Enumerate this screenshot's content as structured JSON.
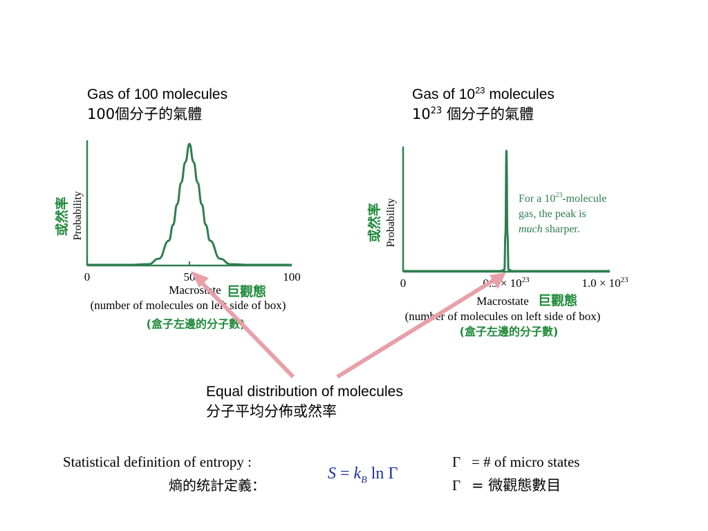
{
  "left_panel": {
    "title_en": "Gas of 100 molecules",
    "title_zh": "100個分子的氣體"
  },
  "right_panel": {
    "title_en_prefix": "Gas of 10",
    "title_en_exp": "23",
    "title_en_suffix": " molecules",
    "title_zh_prefix": "10",
    "title_zh_exp": "23",
    "title_zh_suffix": " 個分子的氣體",
    "annotation_line1_prefix": "For a 10",
    "annotation_line1_exp": "23",
    "annotation_line1_suffix": "-molecule",
    "annotation_line2": "gas, the peak is",
    "annotation_line3_italic": "much",
    "annotation_line3_suffix": " sharper."
  },
  "equal_distribution": {
    "en": "Equal distribution of molecules",
    "zh": "分子平均分佈或然率"
  },
  "entropy": {
    "label_en": "Statistical definition of entropy :",
    "label_zh": "熵的统計定義：",
    "formula_S": "S",
    "formula_eq": " = ",
    "formula_k": "k",
    "formula_B": "B",
    "formula_ln": " ln ",
    "formula_gamma": "Γ",
    "def1_symbol": "Γ",
    "def1_text": "= # of micro states",
    "def2_symbol": "Γ",
    "def2_text": "= 微觀態數目"
  },
  "colors": {
    "curve": "#2e7d4f",
    "arrow": "#e8a0a8",
    "annotation_text": "#2e7d4f",
    "chinese_label": "#1f8a3a",
    "formula": "#1a2fa0"
  },
  "chart_data": [
    {
      "type": "line",
      "title": "",
      "xlabel": "Macrostate",
      "xlabel_sub": "(number of molecules on left side of box)",
      "ylabel": "Probability",
      "ylabel_zh": "或然率",
      "xlabel_zh": "巨觀態",
      "xlabel_sub_zh": "(盒子左邊的分子數)",
      "xlim": [
        0,
        100
      ],
      "x_ticks": [
        "0",
        "50",
        "100"
      ],
      "series": [
        {
          "x": [
            0,
            20,
            30,
            35,
            40,
            42,
            44,
            46,
            48,
            50,
            52,
            54,
            56,
            58,
            60,
            65,
            70,
            80,
            100
          ],
          "y": [
            0,
            0,
            0.005,
            0.05,
            0.2,
            0.33,
            0.5,
            0.68,
            0.85,
            1.0,
            0.85,
            0.68,
            0.5,
            0.33,
            0.2,
            0.05,
            0.005,
            0,
            0
          ]
        }
      ],
      "peak_x": 50
    },
    {
      "type": "line",
      "title": "",
      "xlabel": "Macrostate",
      "xlabel_sub": "(number of molecules on left side of box)",
      "ylabel": "Probability",
      "ylabel_zh": "或然率",
      "xlabel_zh": "巨觀態",
      "xlabel_sub_zh": "(盒子左邊的分子數)",
      "xlim": [
        0,
        1e+23
      ],
      "x_ticks": [
        "0",
        "0.5 × 10^23",
        "1.0 × 10^23"
      ],
      "series": [
        {
          "x": [
            0,
            4.7e+22,
            4.9e+22,
            4.95e+22,
            5e+22,
            5.05e+22,
            5.1e+22,
            5.3e+22,
            1e+23
          ],
          "y": [
            0,
            0,
            0.01,
            0.3,
            1.0,
            0.3,
            0.01,
            0,
            0
          ]
        }
      ],
      "peak_x": 5e+22
    }
  ]
}
